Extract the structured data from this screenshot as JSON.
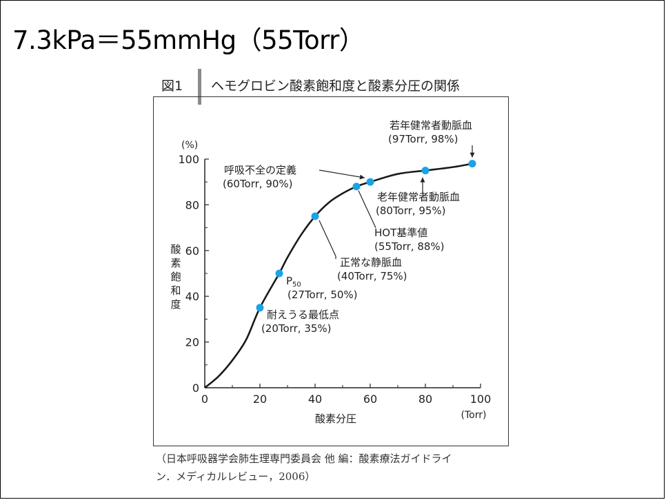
{
  "heading": "7.3kPa＝55mmHg（55Torr）",
  "figure": {
    "label": "図1",
    "title": "ヘモグロビン酸素飽和度と酸素分圧の関係"
  },
  "source_line1": "（日本呼吸器学会肺生理専門委員会 他 編：酸素療法ガイドライ",
  "source_line2": "ン．メディカルレビュー，2006）",
  "chart_data": {
    "type": "line",
    "title": "ヘモグロビン酸素飽和度と酸素分圧の関係",
    "xlabel": "酸素分圧",
    "xunit": "(Torr)",
    "ylabel": "酸素飽和度",
    "yunit": "(%)",
    "xlim": [
      0,
      100
    ],
    "ylim": [
      0,
      100
    ],
    "xticks": [
      0,
      20,
      40,
      60,
      80,
      100
    ],
    "yticks": [
      0,
      20,
      40,
      60,
      80,
      100
    ],
    "grid": false,
    "curve": [
      {
        "x": 0,
        "y": 0
      },
      {
        "x": 5,
        "y": 5
      },
      {
        "x": 10,
        "y": 12
      },
      {
        "x": 15,
        "y": 21
      },
      {
        "x": 20,
        "y": 35
      },
      {
        "x": 27,
        "y": 50
      },
      {
        "x": 30,
        "y": 57
      },
      {
        "x": 35,
        "y": 67
      },
      {
        "x": 40,
        "y": 75
      },
      {
        "x": 45,
        "y": 81
      },
      {
        "x": 50,
        "y": 85
      },
      {
        "x": 55,
        "y": 88
      },
      {
        "x": 60,
        "y": 90
      },
      {
        "x": 70,
        "y": 93.5
      },
      {
        "x": 80,
        "y": 95
      },
      {
        "x": 90,
        "y": 96.5
      },
      {
        "x": 97,
        "y": 98
      }
    ],
    "points": [
      {
        "x": 20,
        "y": 35,
        "label": "耐えうる最低点",
        "value_label": "(20Torr, 35%)"
      },
      {
        "x": 27,
        "y": 50,
        "label": "P50",
        "value_label": "(27Torr, 50%)"
      },
      {
        "x": 40,
        "y": 75,
        "label": "正常な静脈血",
        "value_label": "(40Torr, 75%)"
      },
      {
        "x": 55,
        "y": 88,
        "label": "HOT基準値",
        "value_label": "(55Torr, 88%)"
      },
      {
        "x": 60,
        "y": 90,
        "label": "呼吸不全の定義",
        "value_label": "(60Torr, 90%)"
      },
      {
        "x": 80,
        "y": 95,
        "label": "老年健常者動脈血",
        "value_label": "(80Torr, 95%)"
      },
      {
        "x": 97,
        "y": 98,
        "label": "若年健常者動脈血",
        "value_label": "(97Torr, 98%)"
      }
    ],
    "colors": {
      "curve": "#1a1a1a",
      "point": "#1aa3e8",
      "axis": "#222222"
    }
  }
}
